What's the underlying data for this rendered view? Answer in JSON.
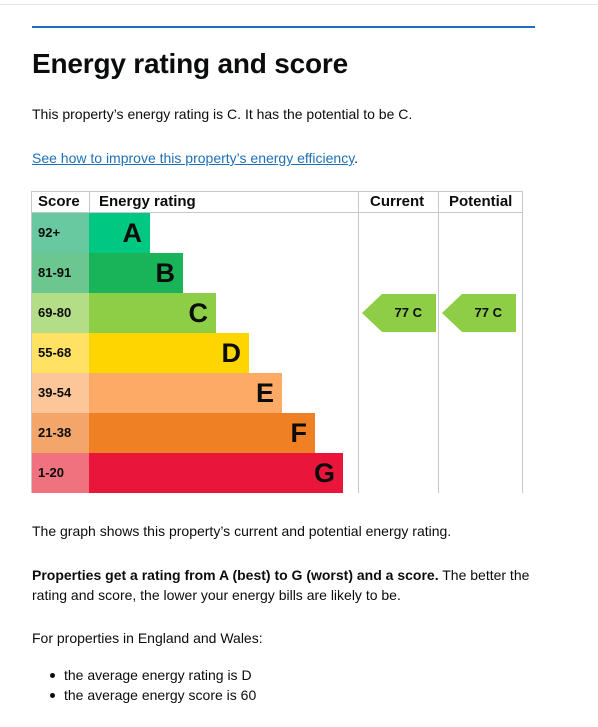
{
  "heading": "Energy rating and score",
  "intro": "This property’s energy rating is C. It has the potential to be C.",
  "link": "See how to improve this property’s energy efficiency",
  "link_suffix": ".",
  "table": {
    "headers": {
      "score": "Score",
      "rating": "Energy rating",
      "current": "Current",
      "potential": "Potential"
    },
    "bands": [
      {
        "score": "92+",
        "letter": "A",
        "bar_color": "#00c781",
        "score_color": "#68c9a0",
        "fraction": 0.24
      },
      {
        "score": "81-91",
        "letter": "B",
        "bar_color": "#19b459",
        "score_color": "#6cc68f",
        "fraction": 0.37
      },
      {
        "score": "69-80",
        "letter": "C",
        "bar_color": "#8dce46",
        "score_color": "#b3dd86",
        "fraction": 0.5
      },
      {
        "score": "55-68",
        "letter": "D",
        "bar_color": "#ffd500",
        "score_color": "#ffe263",
        "fraction": 0.63
      },
      {
        "score": "39-54",
        "letter": "E",
        "bar_color": "#fcaa65",
        "score_color": "#fcc698",
        "fraction": 0.76
      },
      {
        "score": "21-38",
        "letter": "F",
        "bar_color": "#ef8023",
        "score_color": "#f4a66a",
        "fraction": 0.89
      },
      {
        "score": "1-20",
        "letter": "G",
        "bar_color": "#e9153b",
        "score_color": "#f0727f",
        "fraction": 1.0
      }
    ],
    "current": {
      "label": "77 C",
      "band_index": 2,
      "color": "#8dce46"
    },
    "potential": {
      "label": "77 C",
      "band_index": 2,
      "color": "#8dce46"
    }
  },
  "graph_text": "The graph shows this property’s current and potential energy rating.",
  "ratings_bold": "Properties get a rating from A (best) to G (worst) and a score.",
  "ratings_rest": " The better the rating and score, the lower your energy bills are likely to be.",
  "england_text": "For properties in England and Wales:",
  "bullets": [
    "the average energy rating is D",
    "the average energy score is 60"
  ]
}
